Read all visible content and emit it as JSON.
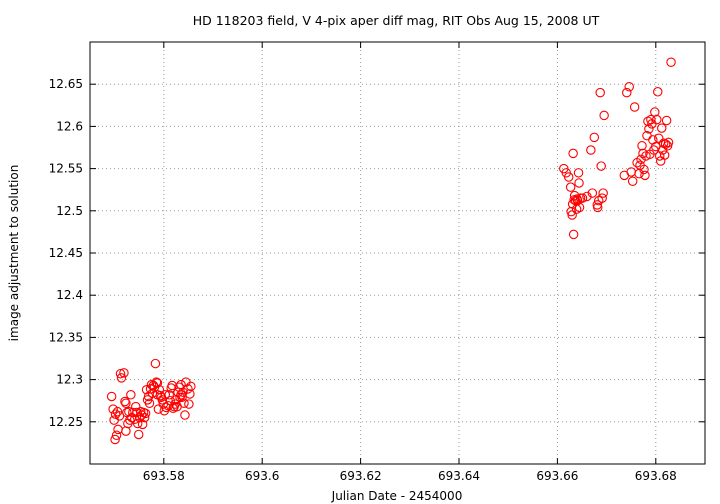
{
  "chart_data": {
    "type": "scatter",
    "title": "HD 118203 field, V 4-pix aper diff mag, RIT Obs Aug 15, 2008 UT",
    "xlabel": "Julian Date - 2454000",
    "ylabel": "image adjustment to solution",
    "xlim": [
      693.565,
      693.69
    ],
    "ylim": [
      12.2,
      12.7
    ],
    "grid": true,
    "x_ticks": [
      "693.58",
      "693.6",
      "693.62",
      "693.64",
      "693.66",
      "693.68"
    ],
    "x_tick_values": [
      693.58,
      693.6,
      693.62,
      693.64,
      693.66,
      693.68
    ],
    "y_ticks": [
      "12.25",
      "12.3",
      "12.35",
      "12.4",
      "12.45",
      "12.5",
      "12.55",
      "12.6",
      "12.65"
    ],
    "y_tick_values": [
      12.25,
      12.3,
      12.35,
      12.4,
      12.45,
      12.5,
      12.55,
      12.6,
      12.65
    ],
    "marker_color": "#ff0000",
    "series": [
      {
        "points": [
          [
            693.5694,
            12.28
          ],
          [
            693.5697,
            12.265
          ],
          [
            693.5699,
            12.252
          ],
          [
            693.5701,
            12.229
          ],
          [
            693.5702,
            12.259
          ],
          [
            693.5704,
            12.234
          ],
          [
            693.5706,
            12.262
          ],
          [
            693.5707,
            12.241
          ],
          [
            693.571,
            12.257
          ],
          [
            693.5712,
            12.307
          ],
          [
            693.5714,
            12.302
          ],
          [
            693.5719,
            12.308
          ],
          [
            693.5721,
            12.274
          ],
          [
            693.5723,
            12.272
          ],
          [
            693.5723,
            12.239
          ],
          [
            693.5725,
            12.261
          ],
          [
            693.5727,
            12.248
          ],
          [
            693.5729,
            12.262
          ],
          [
            693.5731,
            12.252
          ],
          [
            693.5733,
            12.282
          ],
          [
            693.5735,
            12.255
          ],
          [
            693.5737,
            12.261
          ],
          [
            693.5741,
            12.253
          ],
          [
            693.5743,
            12.268
          ],
          [
            693.5745,
            12.261
          ],
          [
            693.5747,
            12.248
          ],
          [
            693.5749,
            12.235
          ],
          [
            693.5751,
            12.255
          ],
          [
            693.5753,
            12.262
          ],
          [
            693.5755,
            12.258
          ],
          [
            693.5757,
            12.247
          ],
          [
            693.5759,
            12.261
          ],
          [
            693.5761,
            12.255
          ],
          [
            693.5763,
            12.26
          ],
          [
            693.5765,
            12.288
          ],
          [
            693.5767,
            12.276
          ],
          [
            693.5769,
            12.28
          ],
          [
            693.5771,
            12.272
          ],
          [
            693.5773,
            12.289
          ],
          [
            693.5775,
            12.294
          ],
          [
            693.5777,
            12.284
          ],
          [
            693.5779,
            12.293
          ],
          [
            693.5781,
            12.291
          ],
          [
            693.5783,
            12.319
          ],
          [
            693.5785,
            12.297
          ],
          [
            693.5787,
            12.282
          ],
          [
            693.5787,
            12.296
          ],
          [
            693.5789,
            12.265
          ],
          [
            693.5791,
            12.288
          ],
          [
            693.5793,
            12.281
          ],
          [
            693.5795,
            12.279
          ],
          [
            693.5797,
            12.276
          ],
          [
            693.5799,
            12.271
          ],
          [
            693.5801,
            12.263
          ],
          [
            693.5803,
            12.282
          ],
          [
            693.5805,
            12.267
          ],
          [
            693.5809,
            12.269
          ],
          [
            693.5811,
            12.282
          ],
          [
            693.5813,
            12.275
          ],
          [
            693.5815,
            12.29
          ],
          [
            693.5817,
            12.293
          ],
          [
            693.5819,
            12.266
          ],
          [
            693.5821,
            12.268
          ],
          [
            693.5823,
            12.271
          ],
          [
            693.5825,
            12.276
          ],
          [
            693.5827,
            12.268
          ],
          [
            693.5829,
            12.285
          ],
          [
            693.5831,
            12.291
          ],
          [
            693.5833,
            12.279
          ],
          [
            693.5835,
            12.282
          ],
          [
            693.5835,
            12.294
          ],
          [
            693.5837,
            12.279
          ],
          [
            693.5839,
            12.285
          ],
          [
            693.5841,
            12.272
          ],
          [
            693.5843,
            12.258
          ],
          [
            693.5845,
            12.297
          ],
          [
            693.5849,
            12.289
          ],
          [
            693.5851,
            12.271
          ],
          [
            693.5853,
            12.283
          ],
          [
            693.5855,
            12.292
          ]
        ]
      },
      {
        "points": [
          [
            693.6613,
            12.55
          ],
          [
            693.6618,
            12.545
          ],
          [
            693.6623,
            12.54
          ],
          [
            693.6627,
            12.528
          ],
          [
            693.6628,
            12.499
          ],
          [
            693.663,
            12.495
          ],
          [
            693.6631,
            12.508
          ],
          [
            693.6632,
            12.568
          ],
          [
            693.6633,
            12.472
          ],
          [
            693.6634,
            12.513
          ],
          [
            693.6635,
            12.518
          ],
          [
            693.6637,
            12.512
          ],
          [
            693.6639,
            12.502
          ],
          [
            693.664,
            12.514
          ],
          [
            693.6641,
            12.512
          ],
          [
            693.6643,
            12.545
          ],
          [
            693.6644,
            12.533
          ],
          [
            693.6645,
            12.504
          ],
          [
            693.6647,
            12.515
          ],
          [
            693.6651,
            12.515
          ],
          [
            693.666,
            12.517
          ],
          [
            693.6668,
            12.572
          ],
          [
            693.6671,
            12.521
          ],
          [
            693.6675,
            12.587
          ],
          [
            693.6681,
            12.507
          ],
          [
            693.6682,
            12.504
          ],
          [
            693.6684,
            12.512
          ],
          [
            693.6687,
            12.64
          ],
          [
            693.6689,
            12.553
          ],
          [
            693.6691,
            12.515
          ],
          [
            693.6693,
            12.521
          ],
          [
            693.6695,
            12.613
          ],
          [
            693.6736,
            12.542
          ],
          [
            693.6741,
            12.64
          ],
          [
            693.6746,
            12.647
          ],
          [
            693.675,
            12.546
          ],
          [
            693.6753,
            12.535
          ],
          [
            693.6757,
            12.623
          ],
          [
            693.6762,
            12.557
          ],
          [
            693.6766,
            12.544
          ],
          [
            693.6768,
            12.554
          ],
          [
            693.677,
            12.561
          ],
          [
            693.6772,
            12.577
          ],
          [
            693.6774,
            12.568
          ],
          [
            693.6776,
            12.549
          ],
          [
            693.6778,
            12.542
          ],
          [
            693.678,
            12.565
          ],
          [
            693.6782,
            12.589
          ],
          [
            693.6784,
            12.606
          ],
          [
            693.6786,
            12.597
          ],
          [
            693.6788,
            12.567
          ],
          [
            693.679,
            12.608
          ],
          [
            693.6792,
            12.603
          ],
          [
            693.6794,
            12.584
          ],
          [
            693.6796,
            12.572
          ],
          [
            693.6798,
            12.617
          ],
          [
            693.68,
            12.576
          ],
          [
            693.6802,
            12.608
          ],
          [
            693.6804,
            12.641
          ],
          [
            693.6806,
            12.586
          ],
          [
            693.6808,
            12.565
          ],
          [
            693.681,
            12.559
          ],
          [
            693.6812,
            12.598
          ],
          [
            693.6814,
            12.572
          ],
          [
            693.6816,
            12.58
          ],
          [
            693.6818,
            12.566
          ],
          [
            693.682,
            12.579
          ],
          [
            693.6822,
            12.607
          ],
          [
            693.6824,
            12.577
          ],
          [
            693.6826,
            12.581
          ],
          [
            693.6831,
            12.676
          ]
        ]
      }
    ]
  }
}
